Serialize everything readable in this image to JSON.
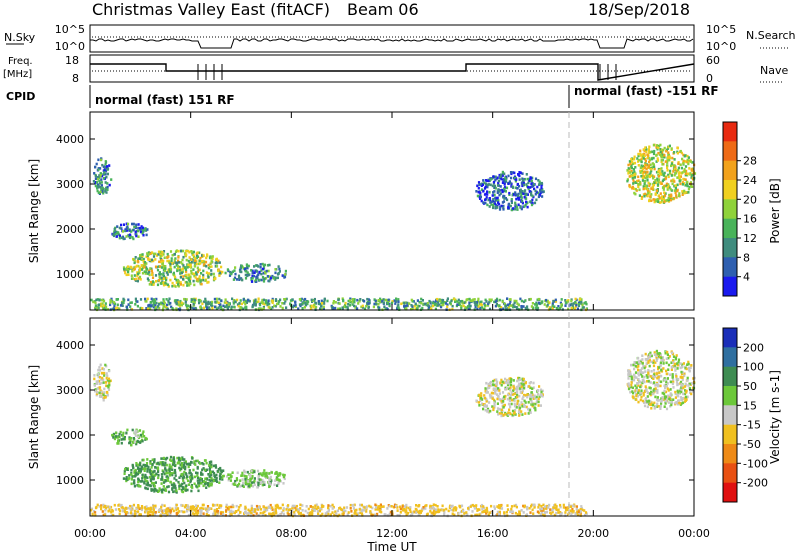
{
  "header": {
    "title": "Christmas Valley East (fitACF)",
    "beam": "Beam 06",
    "date": "18/Sep/2018"
  },
  "panels": {
    "nsky_label": "N.Sky",
    "nsky_ticks": [
      "10^5",
      "10^0"
    ],
    "nsearch_label": "N.Search",
    "nsearch_ticks": [
      "10^5",
      "10^0"
    ],
    "freq_label_1": "Freq.",
    "freq_label_2": "[MHz]",
    "freq_ticks": [
      "18",
      "8"
    ],
    "nave_label": "Nave",
    "nave_ticks": [
      "60",
      "0"
    ],
    "cpid_label": "CPID",
    "cpid_segments": [
      {
        "label": "normal (fast) 151 RF",
        "start_hour": 0
      },
      {
        "label": "normal (fast) -151 RF",
        "start_hour": 19
      }
    ]
  },
  "chart_data": [
    {
      "type": "heatmap",
      "name": "power",
      "ylabel": "Slant Range [km]",
      "xlabel": "Time UT",
      "xlim_hours": [
        0,
        24
      ],
      "ylim_km": [
        200,
        4600
      ],
      "x_ticks": [
        "00:00",
        "04:00",
        "08:00",
        "12:00",
        "16:00",
        "20:00",
        "00:00"
      ],
      "y_ticks": [
        1000,
        2000,
        3000,
        4000
      ],
      "colorbar_label": "Power [dB]",
      "colorbar_ticks": [
        "4",
        "8",
        "12",
        "16",
        "20",
        "24",
        "28"
      ],
      "colors": [
        "#1a1aee",
        "#2e5fb0",
        "#3f8c7e",
        "#49b35a",
        "#8fd23a",
        "#f0d020",
        "#f2a21c",
        "#ee6a16",
        "#e82a10"
      ],
      "regions": [
        {
          "t0": 0.1,
          "t1": 0.8,
          "r0": 2800,
          "r1": 3600,
          "value": 10
        },
        {
          "t0": 0.8,
          "t1": 2.3,
          "r0": 1800,
          "r1": 2150,
          "value": 10
        },
        {
          "t0": 1.3,
          "t1": 5.3,
          "r0": 750,
          "r1": 1550,
          "value": 18
        },
        {
          "t0": 5.3,
          "t1": 7.8,
          "r0": 850,
          "r1": 1250,
          "value": 10
        },
        {
          "t0": 15.3,
          "t1": 18.0,
          "r0": 2450,
          "r1": 3300,
          "value": 8
        },
        {
          "t0": 21.3,
          "t1": 24.0,
          "r0": 2600,
          "r1": 3900,
          "value": 20
        },
        {
          "t0": 0.0,
          "t1": 19.7,
          "r0": 230,
          "r1": 480,
          "value": 14
        }
      ]
    },
    {
      "type": "heatmap",
      "name": "velocity",
      "ylabel": "Slant Range [km]",
      "xlabel": "Time UT",
      "xlim_hours": [
        0,
        24
      ],
      "ylim_km": [
        200,
        4600
      ],
      "x_ticks": [
        "00:00",
        "04:00",
        "08:00",
        "12:00",
        "16:00",
        "20:00",
        "00:00"
      ],
      "y_ticks": [
        1000,
        2000,
        3000,
        4000
      ],
      "colorbar_label": "Velocity [m s-1]",
      "colorbar_ticks": [
        "200",
        "100",
        "50",
        "15",
        "-15",
        "-50",
        "-100",
        "-200"
      ],
      "colors": [
        "#1a2eb8",
        "#2f6fa0",
        "#3e8c52",
        "#6cc83a",
        "#c8c8c8",
        "#f0c020",
        "#ee8a16",
        "#e85012",
        "#e01010"
      ],
      "regions": [
        {
          "t0": 0.1,
          "t1": 0.8,
          "r0": 2800,
          "r1": 3600,
          "value": 0
        },
        {
          "t0": 0.8,
          "t1": 2.3,
          "r0": 1800,
          "r1": 2150,
          "value": 40
        },
        {
          "t0": 1.3,
          "t1": 5.3,
          "r0": 750,
          "r1": 1550,
          "value": 60
        },
        {
          "t0": 5.3,
          "t1": 7.8,
          "r0": 850,
          "r1": 1250,
          "value": 30
        },
        {
          "t0": 15.3,
          "t1": 18.0,
          "r0": 2450,
          "r1": 3300,
          "value": 0
        },
        {
          "t0": 21.3,
          "t1": 24.0,
          "r0": 2600,
          "r1": 3900,
          "value": 0
        },
        {
          "t0": 0.0,
          "t1": 19.7,
          "r0": 230,
          "r1": 480,
          "value": -25
        }
      ]
    }
  ]
}
